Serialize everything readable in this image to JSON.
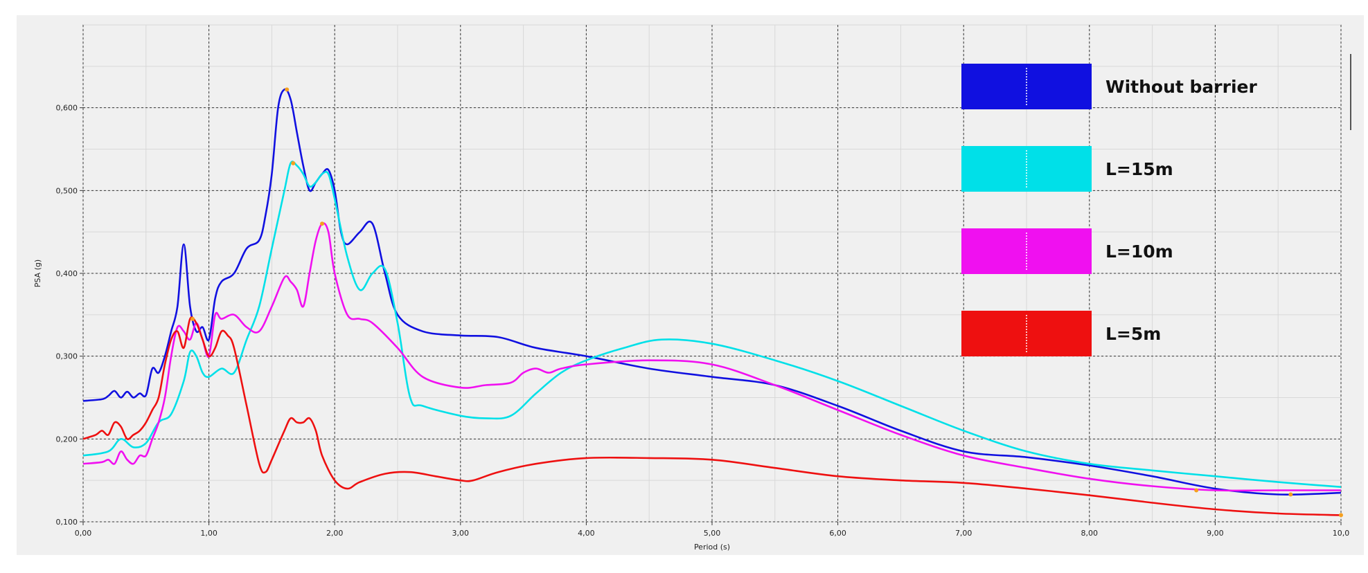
{
  "chart_data": {
    "type": "line",
    "xlabel": "Period (s)",
    "ylabel": "PSA (g)",
    "xlim": [
      0,
      10
    ],
    "ylim": [
      0.1,
      0.7
    ],
    "grid": true,
    "legend_position": "top-right",
    "x_ticks": [
      {
        "value": 0,
        "label": "0,00"
      },
      {
        "value": 1,
        "label": "1,00"
      },
      {
        "value": 2,
        "label": "2,00"
      },
      {
        "value": 3,
        "label": "3,00"
      },
      {
        "value": 4,
        "label": "4,00"
      },
      {
        "value": 5,
        "label": "5,00"
      },
      {
        "value": 6,
        "label": "6,00"
      },
      {
        "value": 7,
        "label": "7,00"
      },
      {
        "value": 8,
        "label": "8,00"
      },
      {
        "value": 9,
        "label": "9,00"
      },
      {
        "value": 10,
        "label": "10,0"
      }
    ],
    "y_ticks": [
      {
        "value": 0.1,
        "label": "0,100"
      },
      {
        "value": 0.2,
        "label": "0,200"
      },
      {
        "value": 0.3,
        "label": "0,300"
      },
      {
        "value": 0.4,
        "label": "0,400"
      },
      {
        "value": 0.5,
        "label": "0,500"
      },
      {
        "value": 0.6,
        "label": "0,600"
      }
    ],
    "series": [
      {
        "name": "Without barrier",
        "color": "#1010e0",
        "x": [
          0,
          0.15,
          0.2,
          0.25,
          0.3,
          0.35,
          0.4,
          0.45,
          0.5,
          0.55,
          0.6,
          0.65,
          0.7,
          0.75,
          0.8,
          0.85,
          0.9,
          0.95,
          1.0,
          1.05,
          1.1,
          1.2,
          1.3,
          1.4,
          1.45,
          1.5,
          1.55,
          1.6,
          1.65,
          1.7,
          1.75,
          1.8,
          1.85,
          1.9,
          1.95,
          2.0,
          2.05,
          2.1,
          2.2,
          2.3,
          2.4,
          2.5,
          2.7,
          3.0,
          3.3,
          3.6,
          4.0,
          4.5,
          5.0,
          5.5,
          6.0,
          6.5,
          7.0,
          7.5,
          8.0,
          8.5,
          9.0,
          9.5,
          10.0
        ],
        "y": [
          0.246,
          0.248,
          0.252,
          0.258,
          0.25,
          0.257,
          0.25,
          0.255,
          0.253,
          0.285,
          0.28,
          0.3,
          0.33,
          0.36,
          0.435,
          0.36,
          0.33,
          0.335,
          0.32,
          0.37,
          0.39,
          0.4,
          0.43,
          0.44,
          0.47,
          0.52,
          0.6,
          0.622,
          0.61,
          0.57,
          0.53,
          0.5,
          0.51,
          0.52,
          0.525,
          0.5,
          0.45,
          0.435,
          0.45,
          0.46,
          0.4,
          0.35,
          0.33,
          0.325,
          0.323,
          0.31,
          0.3,
          0.285,
          0.275,
          0.265,
          0.24,
          0.21,
          0.185,
          0.178,
          0.168,
          0.155,
          0.14,
          0.133,
          0.135
        ]
      },
      {
        "name": "L=15m",
        "color": "#00e0e8",
        "x": [
          0,
          0.2,
          0.3,
          0.4,
          0.5,
          0.6,
          0.7,
          0.8,
          0.85,
          0.9,
          0.95,
          1.0,
          1.1,
          1.2,
          1.3,
          1.4,
          1.5,
          1.6,
          1.65,
          1.7,
          1.75,
          1.8,
          1.85,
          1.9,
          1.95,
          2.0,
          2.1,
          2.2,
          2.3,
          2.4,
          2.5,
          2.6,
          2.7,
          3.0,
          3.2,
          3.4,
          3.6,
          3.8,
          4.0,
          4.3,
          4.6,
          5.0,
          5.5,
          6.0,
          6.5,
          7.0,
          7.5,
          8.0,
          8.5,
          9.0,
          9.5,
          10.0
        ],
        "y": [
          0.18,
          0.185,
          0.2,
          0.19,
          0.195,
          0.22,
          0.23,
          0.27,
          0.305,
          0.3,
          0.28,
          0.275,
          0.285,
          0.28,
          0.32,
          0.36,
          0.43,
          0.5,
          0.533,
          0.53,
          0.52,
          0.505,
          0.51,
          0.52,
          0.52,
          0.49,
          0.42,
          0.38,
          0.4,
          0.405,
          0.34,
          0.25,
          0.24,
          0.228,
          0.225,
          0.228,
          0.255,
          0.28,
          0.295,
          0.31,
          0.32,
          0.315,
          0.295,
          0.27,
          0.24,
          0.21,
          0.185,
          0.17,
          0.162,
          0.155,
          0.148,
          0.142
        ]
      },
      {
        "name": "L=10m",
        "color": "#f010f0",
        "x": [
          0,
          0.15,
          0.2,
          0.25,
          0.3,
          0.35,
          0.4,
          0.45,
          0.5,
          0.55,
          0.6,
          0.65,
          0.7,
          0.75,
          0.8,
          0.85,
          0.9,
          0.95,
          1.0,
          1.05,
          1.1,
          1.2,
          1.3,
          1.4,
          1.5,
          1.6,
          1.65,
          1.7,
          1.75,
          1.8,
          1.85,
          1.9,
          1.95,
          2.0,
          2.1,
          2.2,
          2.3,
          2.5,
          2.7,
          3.0,
          3.2,
          3.4,
          3.5,
          3.6,
          3.7,
          3.8,
          4.0,
          4.5,
          5.0,
          5.5,
          6.0,
          6.5,
          7.0,
          7.5,
          8.0,
          8.5,
          9.0,
          9.5,
          10.0
        ],
        "y": [
          0.17,
          0.172,
          0.175,
          0.17,
          0.185,
          0.175,
          0.17,
          0.18,
          0.18,
          0.2,
          0.22,
          0.25,
          0.3,
          0.335,
          0.33,
          0.32,
          0.34,
          0.32,
          0.3,
          0.35,
          0.345,
          0.35,
          0.335,
          0.33,
          0.36,
          0.395,
          0.39,
          0.38,
          0.36,
          0.4,
          0.44,
          0.46,
          0.45,
          0.4,
          0.35,
          0.345,
          0.34,
          0.31,
          0.275,
          0.262,
          0.265,
          0.268,
          0.28,
          0.285,
          0.28,
          0.285,
          0.29,
          0.295,
          0.29,
          0.265,
          0.235,
          0.205,
          0.18,
          0.165,
          0.152,
          0.143,
          0.138,
          0.138,
          0.138
        ]
      },
      {
        "name": "L=5m",
        "color": "#ee1010",
        "x": [
          0,
          0.1,
          0.15,
          0.2,
          0.25,
          0.3,
          0.35,
          0.4,
          0.45,
          0.5,
          0.55,
          0.6,
          0.65,
          0.7,
          0.75,
          0.8,
          0.85,
          0.9,
          0.95,
          1.0,
          1.05,
          1.1,
          1.15,
          1.2,
          1.3,
          1.4,
          1.45,
          1.5,
          1.6,
          1.65,
          1.7,
          1.75,
          1.8,
          1.85,
          1.9,
          2.0,
          2.1,
          2.2,
          2.4,
          2.6,
          2.8,
          3.0,
          3.1,
          3.3,
          3.6,
          4.0,
          4.5,
          5.0,
          5.5,
          6.0,
          6.5,
          7.0,
          7.5,
          8.0,
          8.5,
          9.0,
          9.5,
          10.0
        ],
        "y": [
          0.2,
          0.205,
          0.21,
          0.205,
          0.22,
          0.215,
          0.2,
          0.205,
          0.21,
          0.22,
          0.235,
          0.25,
          0.29,
          0.32,
          0.33,
          0.31,
          0.345,
          0.34,
          0.32,
          0.3,
          0.31,
          0.33,
          0.325,
          0.31,
          0.24,
          0.17,
          0.16,
          0.175,
          0.21,
          0.225,
          0.22,
          0.22,
          0.225,
          0.21,
          0.18,
          0.15,
          0.14,
          0.148,
          0.158,
          0.16,
          0.155,
          0.15,
          0.15,
          0.16,
          0.17,
          0.177,
          0.177,
          0.175,
          0.165,
          0.155,
          0.15,
          0.147,
          0.14,
          0.132,
          0.123,
          0.115,
          0.11,
          0.108
        ]
      }
    ],
    "peak_markers": [
      {
        "x": 1.62,
        "y": 0.622
      },
      {
        "x": 1.67,
        "y": 0.533
      },
      {
        "x": 1.9,
        "y": 0.46
      },
      {
        "x": 0.87,
        "y": 0.345
      },
      {
        "x": 8.85,
        "y": 0.138
      },
      {
        "x": 9.6,
        "y": 0.133
      },
      {
        "x": 10.0,
        "y": 0.108
      }
    ]
  }
}
